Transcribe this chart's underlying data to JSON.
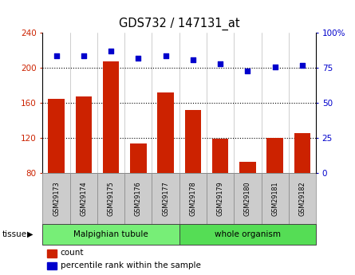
{
  "title": "GDS732 / 147131_at",
  "samples": [
    "GSM29173",
    "GSM29174",
    "GSM29175",
    "GSM29176",
    "GSM29177",
    "GSM29178",
    "GSM29179",
    "GSM29180",
    "GSM29181",
    "GSM29182"
  ],
  "counts": [
    165,
    168,
    208,
    114,
    172,
    152,
    119,
    93,
    120,
    126
  ],
  "percentiles": [
    84,
    84,
    87,
    82,
    84,
    81,
    78,
    73,
    76,
    77
  ],
  "groups": [
    {
      "label": "Malpighian tubule",
      "start": 0,
      "end": 5,
      "color": "#77ee77"
    },
    {
      "label": "whole organism",
      "start": 5,
      "end": 10,
      "color": "#55dd55"
    }
  ],
  "left_ylim": [
    80,
    240
  ],
  "left_yticks": [
    80,
    120,
    160,
    200,
    240
  ],
  "right_ylim": [
    0,
    100
  ],
  "right_yticks": [
    0,
    25,
    50,
    75,
    100
  ],
  "right_yticklabels": [
    "0",
    "25",
    "50",
    "75",
    "100%"
  ],
  "bar_color": "#cc2200",
  "dot_color": "#0000cc",
  "bar_width": 0.6,
  "tick_bg": "#cccccc",
  "tissue_label": "tissue"
}
